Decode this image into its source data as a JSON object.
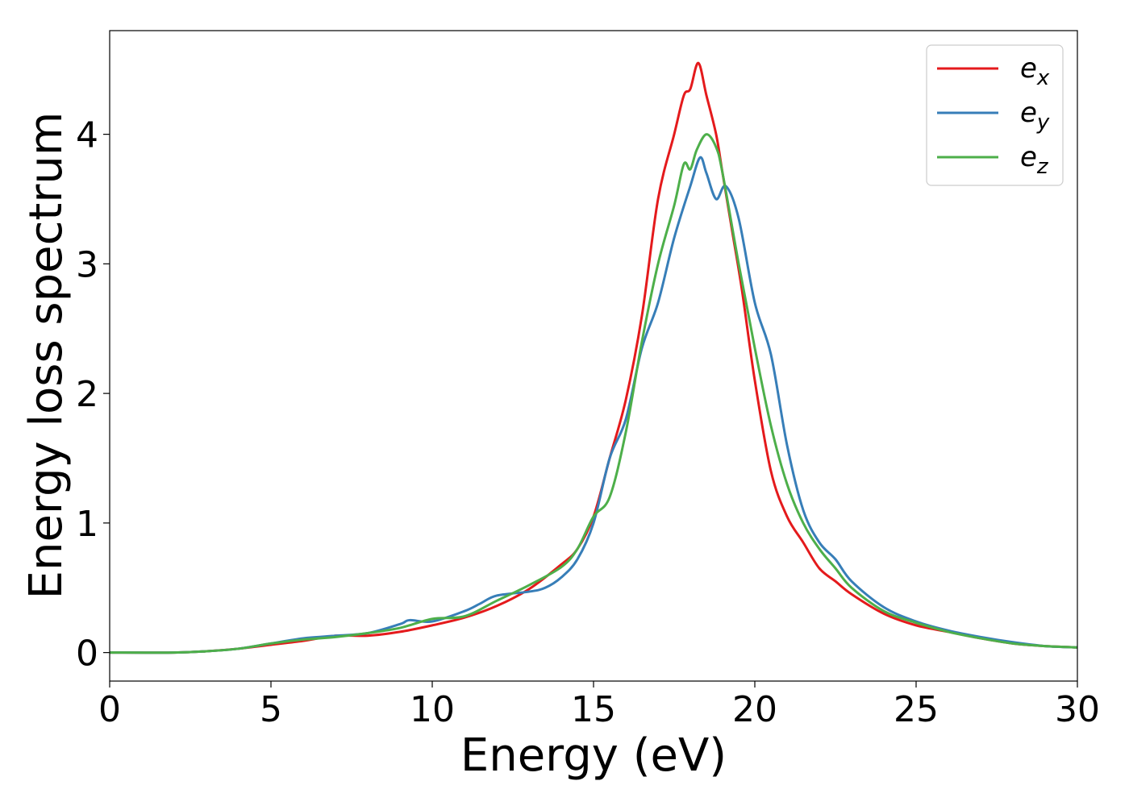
{
  "chart_data": {
    "type": "line",
    "title": "",
    "xlabel": "Energy (eV)",
    "ylabel": "Energy loss spectrum",
    "xlim": [
      0,
      30
    ],
    "ylim": [
      -0.22,
      4.8
    ],
    "xticks": [
      0,
      5,
      10,
      15,
      20,
      25,
      30
    ],
    "yticks": [
      0,
      1,
      2,
      3,
      4
    ],
    "grid": false,
    "legend_position": "top-right",
    "series": [
      {
        "name": "e_x",
        "label_main": "e",
        "label_sub": "x",
        "color": "#e41a1c",
        "x": [
          0,
          2,
          3,
          4,
          5,
          6,
          7,
          8,
          9,
          10,
          11,
          12,
          13,
          14,
          14.5,
          15,
          15.5,
          16,
          16.5,
          17,
          17.5,
          17.8,
          18,
          18.25,
          18.5,
          18.8,
          19,
          19.3,
          19.6,
          20,
          20.5,
          21,
          21.5,
          22,
          22.5,
          23,
          24,
          25,
          26,
          27,
          28,
          29,
          30
        ],
        "values": [
          0,
          0,
          0.01,
          0.03,
          0.06,
          0.09,
          0.13,
          0.13,
          0.16,
          0.21,
          0.27,
          0.36,
          0.49,
          0.68,
          0.8,
          1.05,
          1.5,
          1.95,
          2.6,
          3.5,
          4.0,
          4.3,
          4.35,
          4.55,
          4.3,
          4.0,
          3.7,
          3.25,
          2.8,
          2.1,
          1.4,
          1.05,
          0.85,
          0.65,
          0.55,
          0.45,
          0.3,
          0.21,
          0.16,
          0.11,
          0.07,
          0.05,
          0.04
        ]
      },
      {
        "name": "e_y",
        "label_main": "e",
        "label_sub": "y",
        "color": "#377eb8",
        "x": [
          0,
          2,
          3,
          4,
          5,
          6,
          7,
          8,
          9,
          9.3,
          10,
          11,
          11.5,
          12,
          13,
          13.5,
          14,
          14.5,
          15,
          15.5,
          16,
          16.5,
          17,
          17.5,
          18,
          18.3,
          18.5,
          18.8,
          19.1,
          19.5,
          20,
          20.5,
          21,
          21.5,
          22,
          22.5,
          23,
          24,
          25,
          26,
          27,
          28,
          29,
          30
        ],
        "values": [
          0,
          0,
          0.01,
          0.03,
          0.07,
          0.11,
          0.13,
          0.15,
          0.22,
          0.25,
          0.24,
          0.32,
          0.38,
          0.44,
          0.47,
          0.5,
          0.58,
          0.72,
          1.0,
          1.5,
          1.8,
          2.35,
          2.7,
          3.2,
          3.6,
          3.82,
          3.7,
          3.5,
          3.6,
          3.35,
          2.7,
          2.3,
          1.6,
          1.1,
          0.85,
          0.72,
          0.55,
          0.35,
          0.24,
          0.17,
          0.12,
          0.08,
          0.05,
          0.04
        ]
      },
      {
        "name": "e_z",
        "label_main": "e",
        "label_sub": "z",
        "color": "#4daf4a",
        "x": [
          0,
          2,
          3,
          4,
          5,
          6,
          7,
          8,
          9,
          10,
          11,
          12,
          13,
          14,
          14.5,
          15,
          15.5,
          16,
          16.5,
          17,
          17.5,
          17.8,
          18,
          18.2,
          18.5,
          18.8,
          19,
          19.5,
          20,
          20.5,
          21,
          21.5,
          22,
          22.5,
          23,
          24,
          25,
          26,
          27,
          28,
          29,
          30
        ],
        "values": [
          0,
          0,
          0.01,
          0.03,
          0.07,
          0.1,
          0.12,
          0.15,
          0.19,
          0.26,
          0.28,
          0.4,
          0.52,
          0.66,
          0.8,
          1.05,
          1.2,
          1.7,
          2.4,
          3.0,
          3.45,
          3.77,
          3.73,
          3.88,
          4.0,
          3.9,
          3.7,
          3.0,
          2.35,
          1.75,
          1.3,
          1.0,
          0.8,
          0.65,
          0.5,
          0.32,
          0.23,
          0.16,
          0.11,
          0.07,
          0.05,
          0.04
        ]
      }
    ]
  }
}
